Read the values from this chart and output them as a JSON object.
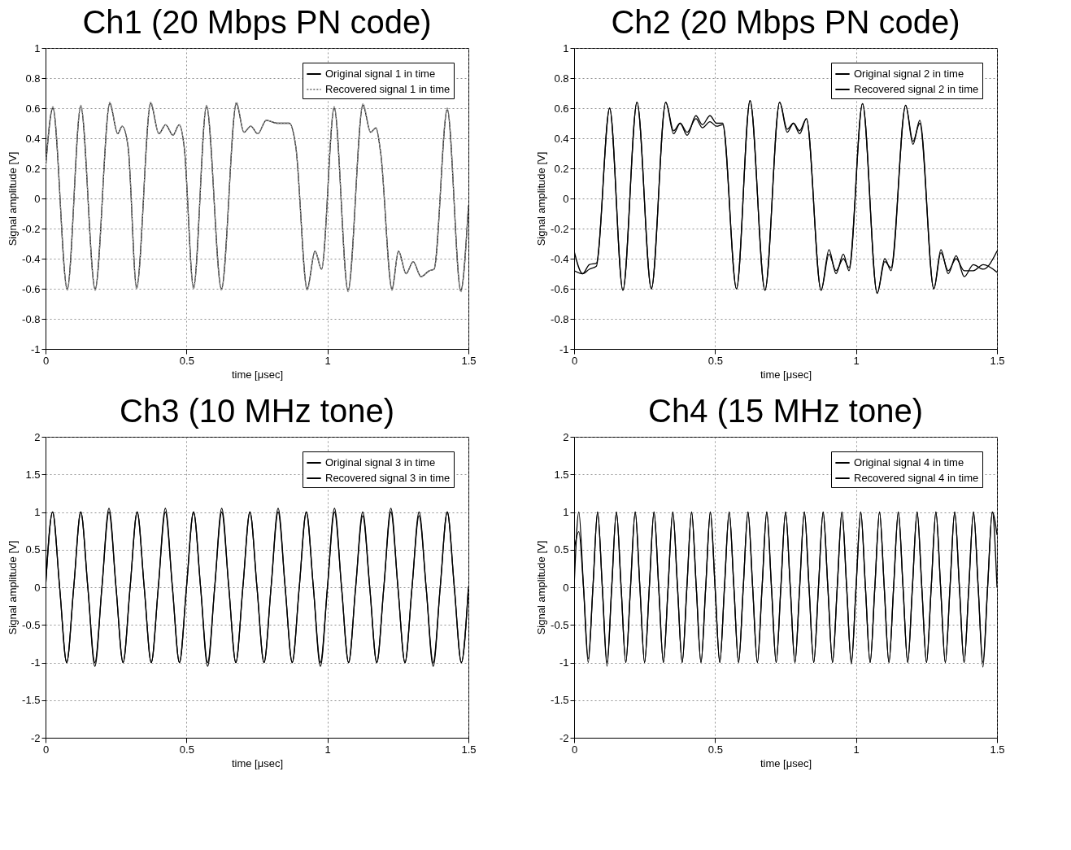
{
  "chart_data": [
    {
      "type": "line",
      "title": "Ch1 (20 Mbps PN code)",
      "xlabel": "time [μsec]",
      "ylabel": "Signal amplitude [V]",
      "xlim": [
        0,
        1.5
      ],
      "xticks": [
        0,
        0.5,
        1,
        1.5
      ],
      "ylim": [
        -1,
        1
      ],
      "yticks": [
        -1,
        -0.8,
        -0.6,
        -0.4,
        -0.2,
        0,
        0.2,
        0.4,
        0.6,
        0.8,
        1
      ],
      "grid": true,
      "legend": "top right",
      "series": [
        {
          "name": "Original signal 1 in time",
          "color": "#000000",
          "x": [
            0,
            0.026,
            0.077,
            0.125,
            0.176,
            0.228,
            0.256,
            0.272,
            0.293,
            0.323,
            0.373,
            0.402,
            0.426,
            0.452,
            0.474,
            0.492,
            0.525,
            0.571,
            0.624,
            0.677,
            0.704,
            0.728,
            0.753,
            0.783,
            0.821,
            0.865,
            0.888,
            0.928,
            0.956,
            0.979,
            1.024,
            1.073,
            1.126,
            1.153,
            1.172,
            1.189,
            1.229,
            1.252,
            1.279,
            1.304,
            1.332,
            1.361,
            1.378,
            1.425,
            1.473,
            1.5
          ],
          "values": [
            0.2,
            0.6,
            -0.6,
            0.61,
            -0.6,
            0.63,
            0.43,
            0.48,
            0.34,
            -0.59,
            0.63,
            0.43,
            0.49,
            0.42,
            0.49,
            0.34,
            -0.59,
            0.61,
            -0.6,
            0.63,
            0.44,
            0.48,
            0.43,
            0.52,
            0.5,
            0.5,
            0.34,
            -0.6,
            -0.35,
            -0.47,
            0.6,
            -0.61,
            0.62,
            0.44,
            0.47,
            0.3,
            -0.6,
            -0.35,
            -0.5,
            -0.42,
            -0.52,
            -0.48,
            -0.47,
            0.59,
            -0.61,
            -0.05
          ]
        },
        {
          "name": "Recovered signal 1 in time",
          "color": "#8c8c8c",
          "line_style": "dotted",
          "x": [
            0,
            0.026,
            0.077,
            0.125,
            0.176,
            0.228,
            0.256,
            0.272,
            0.293,
            0.323,
            0.373,
            0.402,
            0.426,
            0.452,
            0.474,
            0.492,
            0.525,
            0.571,
            0.624,
            0.677,
            0.704,
            0.728,
            0.753,
            0.783,
            0.821,
            0.865,
            0.888,
            0.928,
            0.956,
            0.979,
            1.024,
            1.073,
            1.126,
            1.153,
            1.172,
            1.189,
            1.229,
            1.252,
            1.279,
            1.304,
            1.332,
            1.361,
            1.378,
            1.425,
            1.473,
            1.5
          ],
          "values": [
            0.2,
            0.61,
            -0.61,
            0.62,
            -0.61,
            0.64,
            0.43,
            0.48,
            0.34,
            -0.6,
            0.64,
            0.43,
            0.49,
            0.42,
            0.49,
            0.34,
            -0.6,
            0.62,
            -0.61,
            0.64,
            0.44,
            0.48,
            0.43,
            0.52,
            0.5,
            0.5,
            0.34,
            -0.61,
            -0.35,
            -0.47,
            0.61,
            -0.62,
            0.63,
            0.44,
            0.47,
            0.3,
            -0.61,
            -0.35,
            -0.5,
            -0.42,
            -0.52,
            -0.48,
            -0.47,
            0.6,
            -0.62,
            -0.05
          ]
        }
      ]
    },
    {
      "type": "line",
      "title": "Ch2 (20 Mbps PN code)",
      "xlabel": "time [μsec]",
      "ylabel": "Signal amplitude [V]",
      "xlim": [
        0,
        1.5
      ],
      "xticks": [
        0,
        0.5,
        1,
        1.5
      ],
      "ylim": [
        -1,
        1
      ],
      "yticks": [
        -1,
        -0.8,
        -0.6,
        -0.4,
        -0.2,
        0,
        0.2,
        0.4,
        0.6,
        0.8,
        1
      ],
      "grid": true,
      "legend": "top right",
      "series": [
        {
          "name": "Original signal 2 in time",
          "color": "#000000",
          "x": [
            0,
            0.03,
            0.054,
            0.079,
            0.126,
            0.173,
            0.223,
            0.274,
            0.325,
            0.353,
            0.376,
            0.401,
            0.432,
            0.455,
            0.482,
            0.505,
            0.527,
            0.576,
            0.624,
            0.677,
            0.729,
            0.756,
            0.778,
            0.8,
            0.824,
            0.876,
            0.904,
            0.929,
            0.955,
            0.975,
            1.023,
            1.075,
            1.102,
            1.124,
            1.176,
            1.202,
            1.226,
            1.276,
            1.301,
            1.327,
            1.355,
            1.384,
            1.416,
            1.451,
            1.5
          ],
          "values": [
            -0.35,
            -0.5,
            -0.44,
            -0.43,
            0.6,
            -0.61,
            0.64,
            -0.6,
            0.64,
            0.43,
            0.5,
            0.42,
            0.55,
            0.49,
            0.55,
            0.5,
            0.5,
            -0.6,
            0.65,
            -0.61,
            0.64,
            0.44,
            0.5,
            0.43,
            0.53,
            -0.61,
            -0.34,
            -0.5,
            -0.37,
            -0.48,
            0.63,
            -0.63,
            -0.4,
            -0.48,
            0.62,
            0.36,
            0.52,
            -0.6,
            -0.34,
            -0.5,
            -0.38,
            -0.52,
            -0.44,
            -0.47,
            -0.35
          ]
        },
        {
          "name": "Recovered signal 2 in time",
          "color": "#000000",
          "x": [
            0,
            0.03,
            0.054,
            0.079,
            0.126,
            0.173,
            0.223,
            0.274,
            0.325,
            0.353,
            0.376,
            0.401,
            0.432,
            0.455,
            0.482,
            0.505,
            0.527,
            0.576,
            0.624,
            0.677,
            0.729,
            0.756,
            0.778,
            0.8,
            0.824,
            0.876,
            0.904,
            0.929,
            0.955,
            0.975,
            1.023,
            1.075,
            1.102,
            1.124,
            1.176,
            1.202,
            1.226,
            1.276,
            1.301,
            1.327,
            1.355,
            1.384,
            1.416,
            1.451,
            1.5
          ],
          "values": [
            -0.48,
            -0.5,
            -0.47,
            -0.45,
            0.6,
            -0.61,
            0.64,
            -0.6,
            0.64,
            0.45,
            0.5,
            0.44,
            0.53,
            0.47,
            0.51,
            0.48,
            0.49,
            -0.6,
            0.65,
            -0.61,
            0.64,
            0.46,
            0.5,
            0.45,
            0.53,
            -0.61,
            -0.37,
            -0.48,
            -0.4,
            -0.46,
            0.63,
            -0.63,
            -0.42,
            -0.46,
            0.62,
            0.38,
            0.5,
            -0.6,
            -0.36,
            -0.48,
            -0.4,
            -0.48,
            -0.48,
            -0.44,
            -0.49
          ]
        }
      ]
    },
    {
      "type": "line",
      "title": "Ch3 (10 MHz tone)",
      "xlabel": "time [μsec]",
      "ylabel": "Signal amplitude [V]",
      "xlim": [
        0,
        1.5
      ],
      "xticks": [
        0,
        0.5,
        1,
        1.5
      ],
      "ylim": [
        -2,
        2
      ],
      "yticks": [
        -2,
        -1.5,
        -1,
        -0.5,
        0,
        0.5,
        1,
        1.5,
        2
      ],
      "grid": true,
      "legend": "top right",
      "series": [
        {
          "name": "Original signal 3 in time",
          "color": "#000000",
          "x": [
            0,
            0.025,
            0.05,
            0.075,
            0.1,
            0.125,
            0.15,
            0.175,
            0.2,
            0.225,
            0.25,
            0.275,
            0.3,
            0.325,
            0.35,
            0.375,
            0.4,
            0.425,
            0.45,
            0.475,
            0.5,
            0.525,
            0.55,
            0.575,
            0.6,
            0.625,
            0.65,
            0.675,
            0.7,
            0.725,
            0.75,
            0.775,
            0.8,
            0.825,
            0.85,
            0.875,
            0.9,
            0.925,
            0.95,
            0.975,
            1,
            1.025,
            1.05,
            1.075,
            1.1,
            1.125,
            1.15,
            1.175,
            1.2,
            1.225,
            1.25,
            1.275,
            1.3,
            1.325,
            1.35,
            1.375,
            1.4,
            1.425,
            1.45,
            1.475,
            1.5
          ],
          "values": [
            0,
            1,
            0,
            -1,
            0,
            1,
            0,
            -1,
            0,
            1,
            0,
            -1,
            0,
            1,
            0,
            -1,
            0,
            1,
            0,
            -1,
            0,
            1,
            0,
            -1,
            0,
            1,
            0,
            -1,
            0,
            1,
            0,
            -1,
            0,
            1,
            0,
            -1,
            0,
            1,
            0,
            -1,
            0,
            1,
            0,
            -1,
            0,
            1,
            0,
            -1,
            0,
            1,
            0,
            -1,
            0,
            1,
            0,
            -1,
            0,
            1,
            0,
            -1,
            0
          ]
        },
        {
          "name": "Recovered signal 3 in time",
          "color": "#000000",
          "x": [
            0,
            0.025,
            0.05,
            0.075,
            0.1,
            0.125,
            0.15,
            0.175,
            0.2,
            0.225,
            0.25,
            0.275,
            0.3,
            0.325,
            0.35,
            0.375,
            0.4,
            0.425,
            0.45,
            0.475,
            0.5,
            0.525,
            0.55,
            0.575,
            0.6,
            0.625,
            0.65,
            0.675,
            0.7,
            0.725,
            0.75,
            0.775,
            0.8,
            0.825,
            0.85,
            0.875,
            0.9,
            0.925,
            0.95,
            0.975,
            1,
            1.025,
            1.05,
            1.075,
            1.1,
            1.125,
            1.15,
            1.175,
            1.2,
            1.225,
            1.25,
            1.275,
            1.3,
            1.325,
            1.35,
            1.375,
            1.4,
            1.425,
            1.45,
            1.475,
            1.5
          ],
          "values": [
            0,
            1,
            0,
            -1,
            0,
            1,
            0,
            -1.05,
            0,
            1.05,
            0,
            -1,
            0,
            1,
            0,
            -1,
            0,
            1.05,
            0,
            -1,
            0,
            1,
            0,
            -1.05,
            0,
            1.05,
            0,
            -1,
            0,
            1,
            0,
            -1,
            0,
            1.05,
            0,
            -1,
            0,
            1,
            0,
            -1.05,
            0,
            1.05,
            0,
            -1,
            0,
            0.95,
            0,
            -1,
            0,
            1.05,
            0,
            -1,
            0,
            0.95,
            0,
            -1.05,
            0,
            1,
            0,
            -1,
            0
          ]
        }
      ]
    },
    {
      "type": "line",
      "title": "Ch4 (15 MHz tone)",
      "xlabel": "time [μsec]",
      "ylabel": "Signal amplitude [V]",
      "xlim": [
        0,
        1.5
      ],
      "xticks": [
        0,
        0.5,
        1,
        1.5
      ],
      "ylim": [
        -2,
        2
      ],
      "yticks": [
        -2,
        -1.5,
        -1,
        -0.5,
        0,
        0.5,
        1,
        1.5,
        2
      ],
      "grid": true,
      "legend": "top right",
      "series": [
        {
          "name": "Original signal 4 in time",
          "color": "#000000",
          "x": [
            0,
            0.0167,
            0.0333,
            0.05,
            0.0667,
            0.0833,
            0.1,
            0.1167,
            0.1333,
            0.15,
            0.1667,
            0.1833,
            0.2,
            0.2167,
            0.2333,
            0.25,
            0.2667,
            0.2833,
            0.3,
            0.3167,
            0.3333,
            0.35,
            0.3667,
            0.3833,
            0.4,
            0.4167,
            0.4333,
            0.45,
            0.4667,
            0.4833,
            0.5,
            0.5167,
            0.5333,
            0.55,
            0.5667,
            0.5833,
            0.6,
            0.6167,
            0.6333,
            0.65,
            0.6667,
            0.6833,
            0.7,
            0.7167,
            0.7333,
            0.75,
            0.7667,
            0.7833,
            0.8,
            0.8167,
            0.8333,
            0.85,
            0.8667,
            0.8833,
            0.9,
            0.9167,
            0.9333,
            0.95,
            0.9667,
            0.9833,
            1,
            1.0167,
            1.0333,
            1.05,
            1.0667,
            1.0833,
            1.1,
            1.1167,
            1.1333,
            1.15,
            1.1667,
            1.1833,
            1.2,
            1.2167,
            1.2333,
            1.25,
            1.2667,
            1.2833,
            1.3,
            1.3167,
            1.3333,
            1.35,
            1.3667,
            1.3833,
            1.4,
            1.4167,
            1.4333,
            1.45,
            1.4667,
            1.4833,
            1.5
          ],
          "values": [
            0,
            1,
            0,
            -1,
            0,
            1,
            0,
            -1,
            0,
            1,
            0,
            -1,
            0,
            1,
            0,
            -1,
            0,
            1,
            0,
            -1,
            0,
            1,
            0,
            -1,
            0,
            1,
            0,
            -1,
            0,
            1,
            0,
            -1,
            0,
            1,
            0,
            -1,
            0,
            1,
            0,
            -1,
            0,
            1,
            0,
            -1,
            0,
            1,
            0,
            -1,
            0,
            1,
            0,
            -1,
            0,
            1,
            0,
            -1,
            0,
            1,
            0,
            -1,
            0,
            1,
            0,
            -1,
            0,
            1,
            0,
            -1,
            0,
            1,
            0,
            -1,
            0,
            1,
            0,
            -1,
            0,
            1,
            0,
            -1,
            0,
            1,
            0,
            -1,
            0,
            1,
            0,
            -1,
            0,
            1,
            0
          ]
        },
        {
          "name": "Recovered signal 4 in time",
          "color": "#000000",
          "x": [
            0,
            0.0167,
            0.0333,
            0.05,
            0.0667,
            0.0833,
            0.1,
            0.1167,
            0.1333,
            0.15,
            0.1667,
            0.1833,
            0.2,
            0.2167,
            0.2333,
            0.25,
            0.2667,
            0.2833,
            0.3,
            0.3167,
            0.3333,
            0.35,
            0.3667,
            0.3833,
            0.4,
            0.4167,
            0.4333,
            0.45,
            0.4667,
            0.4833,
            0.5,
            0.5167,
            0.5333,
            0.55,
            0.5667,
            0.5833,
            0.6,
            0.6167,
            0.6333,
            0.65,
            0.6667,
            0.6833,
            0.7,
            0.7167,
            0.7333,
            0.75,
            0.7667,
            0.7833,
            0.8,
            0.8167,
            0.8333,
            0.85,
            0.8667,
            0.8833,
            0.9,
            0.9167,
            0.9333,
            0.95,
            0.9667,
            0.9833,
            1,
            1.0167,
            1.0333,
            1.05,
            1.0667,
            1.0833,
            1.1,
            1.1167,
            1.1333,
            1.15,
            1.1667,
            1.1833,
            1.2,
            1.2167,
            1.2333,
            1.25,
            1.2667,
            1.2833,
            1.3,
            1.3167,
            1.3333,
            1.35,
            1.3667,
            1.3833,
            1.4,
            1.4167,
            1.4333,
            1.45,
            1.4667,
            1.4833,
            1.5
          ],
          "values": [
            0.5,
            0.74,
            0,
            -0.95,
            0,
            1,
            0,
            -1.05,
            0,
            1,
            0,
            -1,
            0,
            1,
            0,
            -1,
            0,
            1,
            0,
            -1,
            0,
            1,
            0,
            -1,
            0,
            1,
            0,
            -1,
            0,
            1,
            0,
            -1,
            0,
            1,
            0,
            -1,
            0,
            1,
            0,
            -1,
            0,
            1,
            0,
            -1,
            0,
            1,
            0,
            -1,
            0,
            1,
            0,
            -1,
            0,
            1,
            0,
            -1,
            0,
            1,
            0,
            -1.02,
            0,
            1,
            0,
            -1,
            0,
            1,
            0,
            -1,
            0,
            1,
            0,
            -1,
            0,
            1,
            0,
            -1,
            0,
            1,
            0,
            -1,
            0,
            1,
            0,
            -1,
            0,
            1,
            0,
            -1.06,
            0,
            1,
            0.7
          ]
        }
      ]
    }
  ]
}
